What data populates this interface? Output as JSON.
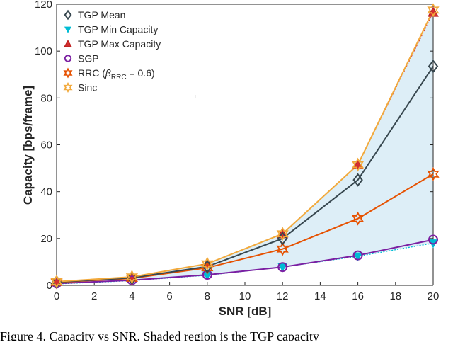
{
  "chart_data": {
    "type": "line",
    "title": "",
    "xlabel": "SNR [dB]",
    "ylabel": "Capacity [bps/frame]",
    "xlim": [
      0,
      20
    ],
    "ylim": [
      0,
      120
    ],
    "xticks": [
      0,
      2,
      4,
      6,
      8,
      10,
      12,
      14,
      16,
      18,
      20
    ],
    "yticks": [
      0,
      20,
      40,
      60,
      80,
      100,
      120
    ],
    "grid": false,
    "legend_position": "top-left",
    "x": [
      0,
      4,
      8,
      12,
      16,
      20
    ],
    "series": [
      {
        "name": "TGP Mean",
        "values": [
          1.4,
          3.2,
          8.0,
          20.0,
          45.0,
          93.5
        ],
        "color": "#37474f",
        "marker": "diamond",
        "line": "solid"
      },
      {
        "name": "TGP Min Capacity",
        "values": [
          0.6,
          2.0,
          4.3,
          7.8,
          12.4,
          18.0
        ],
        "color": "#00bcd4",
        "marker": "triangle-down",
        "line": "dotted"
      },
      {
        "name": "TGP Max Capacity",
        "values": [
          1.6,
          3.6,
          9.2,
          22.0,
          51.5,
          116.5
        ],
        "color": "#d32f2f",
        "marker": "triangle-up",
        "line": "dotted"
      },
      {
        "name": "SGP",
        "values": [
          0.8,
          2.2,
          4.5,
          7.8,
          12.8,
          19.5
        ],
        "color": "#7b1fa2",
        "marker": "circle",
        "line": "solid"
      },
      {
        "name_parts": [
          "RRC (",
          "β",
          "RRC",
          " = 0.6)"
        ],
        "values": [
          1.3,
          3.0,
          7.5,
          15.5,
          28.5,
          47.5
        ],
        "color": "#e65100",
        "marker": "hexagram",
        "line": "solid"
      },
      {
        "name": "Sinc",
        "values": [
          1.6,
          3.6,
          9.2,
          22.0,
          51.5,
          117.5
        ],
        "color": "#f2a93b",
        "marker": "hexagram",
        "line": "solid"
      }
    ],
    "shaded_region": {
      "between": [
        "TGP Min Capacity",
        "TGP Max Capacity"
      ],
      "color": "#ddeef7"
    }
  },
  "caption": "Figure 4.  Capacity vs SNR.  Shaded region is the TGP capacity"
}
